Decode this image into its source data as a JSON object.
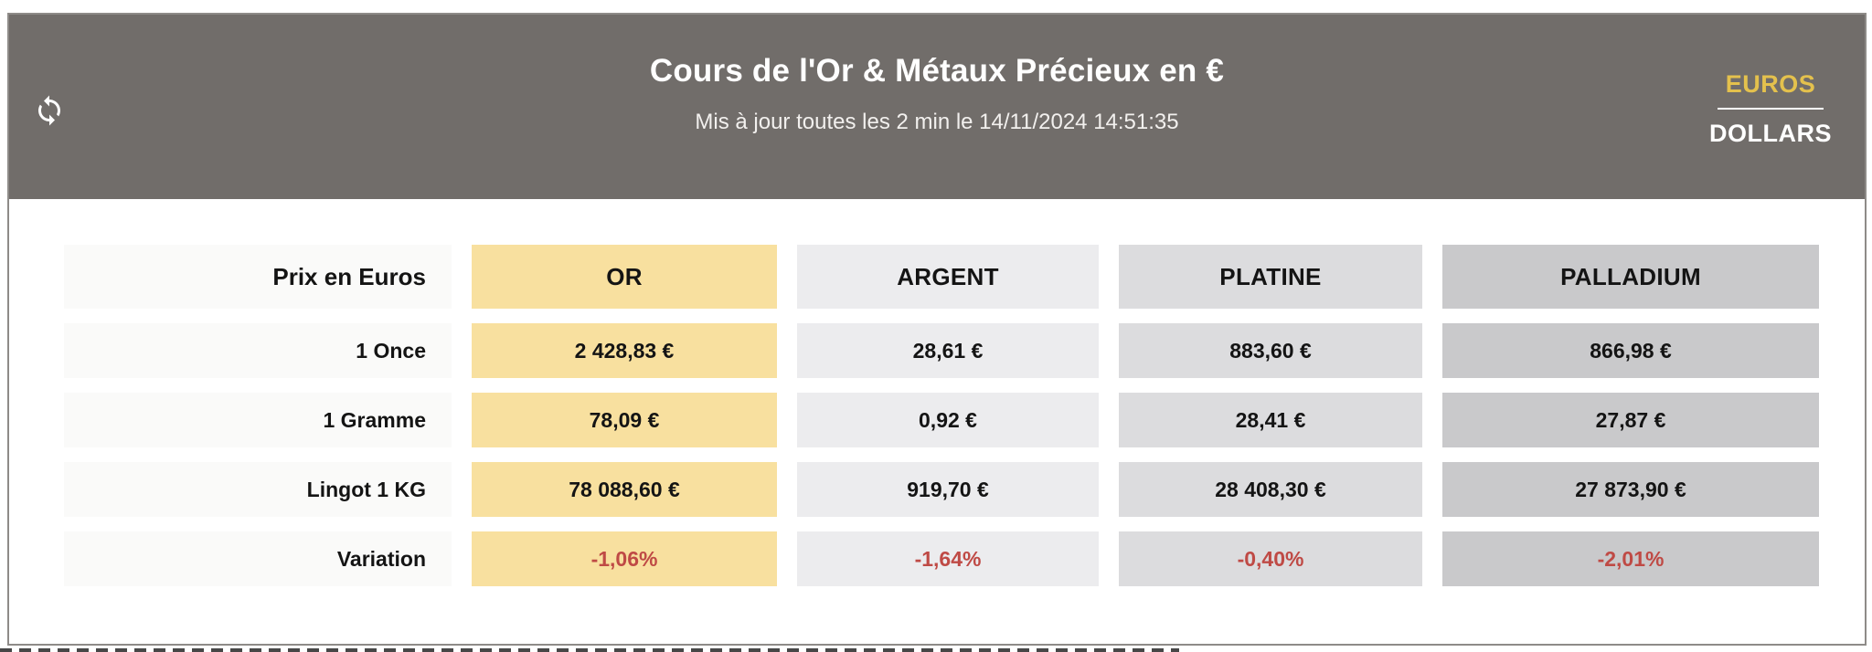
{
  "header": {
    "title": "Cours de l'Or & Métaux Précieux en €",
    "subtitle": "Mis à jour toutes les 2 min le 14/11/2024 14:51:35",
    "refresh_icon": "sync-arrows-icon",
    "currency": {
      "selected": "EUROS",
      "options": [
        {
          "label": "EUROS",
          "active": true
        },
        {
          "label": "DOLLARS",
          "active": false
        }
      ]
    }
  },
  "table": {
    "corner_label": "Prix en Euros",
    "columns": [
      {
        "key": "or",
        "label": "OR",
        "color": "#f8e09f"
      },
      {
        "key": "argent",
        "label": "ARGENT",
        "color": "#ececee"
      },
      {
        "key": "platine",
        "label": "PLATINE",
        "color": "#dcdcde"
      },
      {
        "key": "palladium",
        "label": "PALLADIUM",
        "color": "#c9c9cb"
      }
    ],
    "rows": [
      {
        "label": "1 Once",
        "values": [
          "2 428,83 €",
          "28,61 €",
          "883,60 €",
          "866,98 €"
        ],
        "negative": false
      },
      {
        "label": "1 Gramme",
        "values": [
          "78,09 €",
          "0,92 €",
          "28,41 €",
          "27,87 €"
        ],
        "negative": false
      },
      {
        "label": "Lingot 1 KG",
        "values": [
          "78 088,60 €",
          "919,70 €",
          "28 408,30 €",
          "27 873,90 €"
        ],
        "negative": false
      },
      {
        "label": "Variation",
        "values": [
          "-1,06%",
          "-1,64%",
          "-0,40%",
          "-2,01%"
        ],
        "negative": true
      }
    ]
  },
  "colors": {
    "header_background": "#716d6a",
    "accent_gold": "#e4c14d",
    "gold_cell": "#f8e09f",
    "negative_red": "#bf4a45",
    "label_cell": "#fafaf9"
  }
}
